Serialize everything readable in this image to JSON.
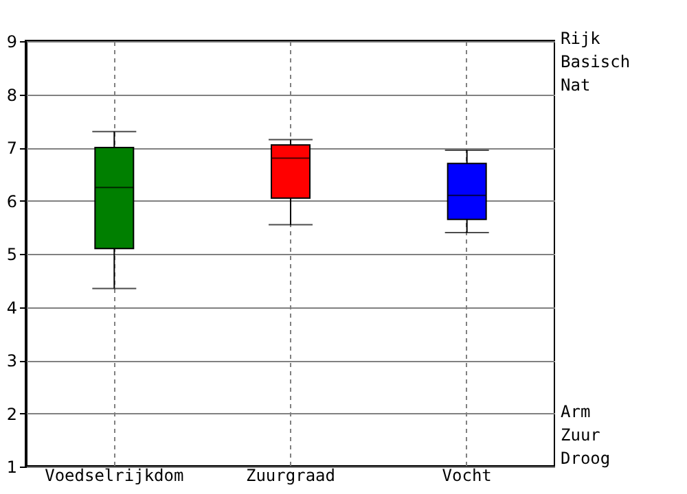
{
  "chart_data": {
    "type": "box",
    "categories": [
      "Voedselrijkdom",
      "Zuurgraad",
      "Vocht"
    ],
    "boxes": [
      {
        "low": 4.35,
        "q1": 5.1,
        "median": 6.25,
        "q3": 7.0,
        "high": 7.3
      },
      {
        "low": 5.55,
        "q1": 6.05,
        "median": 6.8,
        "q3": 7.05,
        "high": 7.15
      },
      {
        "low": 5.4,
        "q1": 5.65,
        "median": 6.1,
        "q3": 6.7,
        "high": 6.95
      }
    ],
    "colors": [
      "#007f00",
      "#ff0000",
      "#0000ff"
    ],
    "ylim": [
      1,
      9
    ],
    "yticks": [
      1,
      2,
      3,
      4,
      5,
      6,
      7,
      8,
      9
    ],
    "annotations": [
      "Rijk\nBasisch\nNat",
      "Arm\nZuur\nDroog"
    ],
    "grid": true
  }
}
